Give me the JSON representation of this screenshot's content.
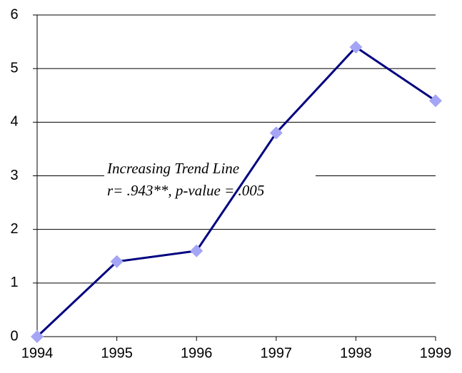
{
  "chart_data": {
    "type": "line",
    "x": [
      1994,
      1995,
      1996,
      1997,
      1998,
      1999
    ],
    "series": [
      {
        "color": "#000080",
        "marker_color": "#a5a5f5",
        "values": [
          0,
          1.4,
          1.6,
          3.8,
          5.4,
          4.4
        ]
      }
    ],
    "xlim": [
      1994,
      1999
    ],
    "xticks": [
      1994,
      1995,
      1996,
      1997,
      1998,
      1999
    ],
    "ylim": [
      0,
      6
    ],
    "yticks": [
      0,
      1,
      2,
      3,
      4,
      5,
      6
    ],
    "grid": true,
    "annotations": [
      "Increasing Trend Line",
      "r= .943**,  p-value = .005"
    ]
  }
}
